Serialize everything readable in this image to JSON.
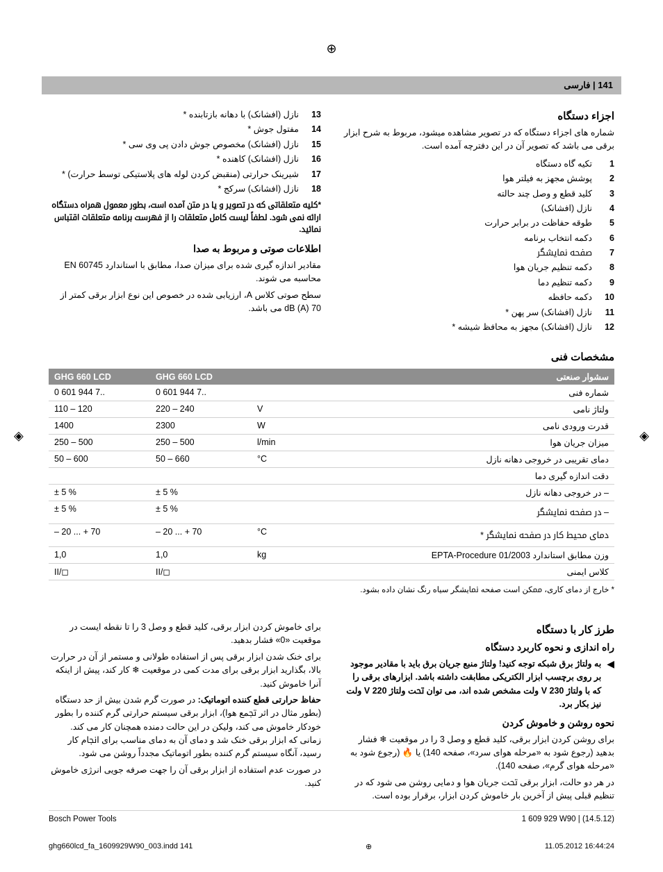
{
  "header": {
    "page_label": "141 | ﻓﺎرﺳﯽ"
  },
  "sections": {
    "parts_title": "اﺟﺰاء دﺳﺘﮕﺎه",
    "parts_intro": "ﺷﻤﺎره ﻫﺎی اﺟﺰاء دﺳﺘﮕﺎه ﮐﻪ در ﺗﺼﻮﯾﺮ ﻣﺸﺎﻫﺪه ﻣﯿﺸﻮد، ﻣﺮﺑﻮط ﺑﻪ ﺷﺮح اﺑﺰار ﺑﺮﻗﯽ ﻣﯽ ﺑﺎﺷﺪ ﮐﻪ ﺗﺼﻮﯾﺮ آن در اﯾﻦ دﻓﺘﺮﭼﻪ آﻣﺪه اﺳﺖ.",
    "parts_right": [
      {
        "n": "1",
        "t": "ﺗﮑﯿﻪ ﮔﺎه دﺳﺘﮕﺎه"
      },
      {
        "n": "2",
        "t": "ﭘﻮﺷﺶ ﻣﺠﻬﺰ ﺑﻪ ﻓﯿﻠﺘﺮ ﻫﻮا"
      },
      {
        "n": "3",
        "t": "ﮐﻠﯿﺪ ﻗﻄﻊ و وﺻﻞ ﭼﻨﺪ ﺣﺎﻟﺘﻪ"
      },
      {
        "n": "4",
        "t": "ﻧﺎزل (اﻓﺸﺎﻧﮏ)"
      },
      {
        "n": "5",
        "t": "ﻃﻮﻗﻪ ﺣﻔﺎﻇﺖ در ﺑﺮاﺑﺮ ﺣﺮارت"
      },
      {
        "n": "6",
        "t": "دﮐﻤﻪ اﻧﺘﺨﺎب ﺑﺮﻧﺎﻣﻪ"
      },
      {
        "n": "7",
        "t": "ﺻﻔﺤﻪ ﳕﺎﯾﺸﮕﺮ"
      },
      {
        "n": "8",
        "t": "دﮐﻤﻪ ﺗﻨﻈﯿﻢ ﺟﺮﯾﺎن ﻫﻮا"
      },
      {
        "n": "9",
        "t": "دﮐﻤﻪ ﺗﻨﻈﯿﻢ دﻣﺎ"
      },
      {
        "n": "10",
        "t": "دﮐﻤﻪ ﺣﺎﻓﻈﻪ"
      },
      {
        "n": "11",
        "t": "ﻧﺎزل (اﻓﺸﺎﻧﮏ) ﺳﺮ ﭘﻬﻦ *"
      },
      {
        "n": "12",
        "t": "ﻧﺎزل (اﻓﺸﺎﻧﮏ) ﻣﺠﻬﺰ ﺑﻪ ﻣﺤﺎﻓﻆ ﺷﯿﺸﻪ *"
      }
    ],
    "parts_left": [
      {
        "n": "13",
        "t": "ﻧﺎزل (اﻓﺸﺎﻧﮏ) ﺑﺎ دﻫﺎﻧﻪ ﺑﺎزﺗﺎﺑﻨﺪه *"
      },
      {
        "n": "14",
        "t": "ﻣﻔﺘﻮل ﺟﻮش *"
      },
      {
        "n": "15",
        "t": "ﻧﺎزل (اﻓﺸﺎﻧﮏ) ﻣﺨﺼﻮص ﺟﻮش دادن ﭘﯽ وی ﺳﯽ *"
      },
      {
        "n": "16",
        "t": "ﻧﺎزل (اﻓﺸﺎﻧﮏ) ﮐﺎﻫﻨﺪه *"
      },
      {
        "n": "17",
        "t": "ﺷﯿﺮﯾﻨﮏ ﺣﺮارﺗﯽ (ﻣﻨﻘﺒﺾ ﮐﺮدن ﻟﻮﻟﻪ ﻫﺎی ﭘﻼﺳﺘﯿﮑﯽ ﺗﻮﺳﻂ ﺣﺮارت) *"
      },
      {
        "n": "18",
        "t": "ﻧﺎزل (اﻓﺸﺎﻧﮏ) ﺳﺮﮐﺞ *"
      }
    ],
    "parts_note": "*ﮐﻠﯿﻪ ﻣﺘﻌﻠﻘﺎﺗﯽ ﮐﻪ در ﺗﺼﻮﯾﺮ و ﯾﺎ در ﻣﱳ آﻣﺪه اﺳﺖ، ﺑﻄﻮر ﻣﻌﻤﻮل ﻫﻤﺮاه دﺳﺘﮕﺎه اراﺋﻪ ﳕﯽ ﺷﻮد. ﻟﻄﻔﺎً ﻟﯿﺴﺖ ﮐﺎﻣﻞ ﻣﺘﻌﻠﻘﺎت را از ﻓﻬﺮﺳﺖ ﺑﺮﻧﺎﻣﻪ ﻣﺘﻌﻠﻘﺎت اﻗﺘﺒﺎس ﳕﺎﺋﯿﺪ.",
    "noise_title": "اﻃﻼﻋﺎت ﺻﻮﺗﯽ و ﻣﺮﺑﻮط ﺑﻪ ﺻﺪا",
    "noise_p1": "ﻣﻘﺎدﯾﺮ اﻧﺪازه ﮔﯿﺮی ﺷﺪه ﺑﺮای ﻣﯿﺰان ﺻﺪا، ﻣﻄﺎﺑﻖ ﺑﺎ اﺳﺘﺎﻧﺪارد EN 60745 ﻣﺤﺎﺳﺒﻪ ﻣﯽ ﺷﻮﻧﺪ.",
    "noise_p2": "ﺳﻄﺢ ﺻﻮﺗﯽ ﮐﻼس A، ارزﯾﺎﺑﯽ ﺷﺪه در ﺧﺼﻮص اﯾﻦ ﻧﻮع اﺑﺰار ﺑﺮﻗﯽ ﮐﻤﺘﺮ از 70 dB (A) ﻣﯽ ﺑﺎﺷﺪ.",
    "tech_title": "ﻣﺸﺨﺼﺎت ﻓﻨﯽ"
  },
  "spec_table": {
    "headers": {
      "label": "ﺳﺸﻮار ﺻﻨﻌﺘﯽ",
      "unit": "",
      "c1": "GHG 660 LCD",
      "c2": "GHG 660 LCD"
    },
    "rows": [
      {
        "label": "ﺷﻤﺎره ﻓﻨﯽ",
        "unit": "",
        "c1": "0 601 944 7..",
        "c2": "0 601 944 7.."
      },
      {
        "label": "وﻟﺘﺎژ ﻧﺎﻣﯽ",
        "unit": "V",
        "c1": "220 – 240",
        "c2": "110 – 120"
      },
      {
        "label": "ﻗﺪرت ورودی ﻧﺎﻣﯽ",
        "unit": "W",
        "c1": "2300",
        "c2": "1400"
      },
      {
        "label": "ﻣﯿﺰان ﺟﺮﯾﺎن ﻫﻮا",
        "unit": "l/min",
        "c1": "250 – 500",
        "c2": "250 – 500"
      },
      {
        "label": "دﻣﺎی ﺗﻘﺮﯾﺒﯽ در ﺧﺮوﺟﯽ دﻫﺎﻧﻪ ﻧﺎزل",
        "unit": "°C",
        "c1": "50 – 660",
        "c2": "50 – 600"
      },
      {
        "label": "دﻗﺖ اﻧﺪازه ﮔﯿﺮی دﻣﺎ",
        "unit": "",
        "c1": "",
        "c2": ""
      },
      {
        "label": "– در ﺧﺮوﺟﯽ دﻫﺎﻧﻪ ﻧﺎزل",
        "unit": "",
        "c1": "± 5 %",
        "c2": "± 5 %"
      },
      {
        "label": "– در ﺻﻔﺤﻪ ﳕﺎﯾﺸﮕﺮ",
        "unit": "",
        "c1": "± 5 %",
        "c2": "± 5 %"
      },
      {
        "label": "دﻣﺎی ﻣﺤﯿﻂ ﮐﺎر در ﺻﻔﺤﻪ ﳕﺎﯾﺸﮕﺮ *",
        "unit": "°C",
        "c1": "– 20 ... + 70",
        "c2": "– 20 ... + 70"
      },
      {
        "label": "وزن ﻣﻄﺎﺑﻖ اﺳﺘﺎﻧﺪارد EPTA-Procedure 01/2003",
        "unit": "kg",
        "c1": "1,0",
        "c2": "1,0"
      },
      {
        "label": "ﮐﻼس اﯾﻤﻨﯽ",
        "unit": "",
        "c1": "II/◻",
        "c2": "II/◻"
      }
    ],
    "footnote": "* ﺧﺎرج از دﻣﺎی ﮐﺎری، ﳑﮑﻦ اﺳﺖ ﺻﻔﺤﻪ ﳕﺎﯾﺸﮕﺮ ﺳﯿﺎه رﻧﮓ ﻧﺸﺎن داده ﺑﺸﻮد."
  },
  "usage": {
    "title": "ﻃﺮز ﮐﺎر ﺑﺎ دﺳﺘﮕﺎه",
    "start_title": "راه اﻧﺪازی و ﻧﺤﻮه ﮐﺎرﺑﺮد دﺳﺘﮕﺎه",
    "warn": "ﺑﻪ وﻟﺘﺎژ ﺑﺮق ﺷﺒﮑﻪ ﺗﻮﺟﻪ ﮐﻨﯿﺪ! وﻟﺘﺎژ ﻣﻨﺒﻊ ﺟﺮﯾﺎن ﺑﺮق ﺑﺎﯾﺪ ﺑﺎ ﻣﻘﺎدﯾﺮ ﻣﻮﺟﻮد ﺑﺮ روی ﺑﺮﭼﺴﺐ اﺑﺰار اﻟﮑﺘﺮﯾﮑﯽ ﻣﻄﺎﺑﻘﺖ داﺷﺘﻪ ﺑﺎﺷﺪ. اﺑﺰارﻫﺎی ﺑﺮﻗﯽ را ﮐﻪ ﺑﺎ وﻟﺘﺎژ 230 V وﻟﺖ ﻣﺸﺨﺺ ﺷﺪه اﻧﺪ، ﻣﯽ ﺗﻮان ﲢﺖ وﻟﺘﺎژ 220 V وﻟﺖ ﻧﯿﺰ ﺑﮑﺎر ﺑﺮد.",
    "onoff_title": "ﻧﺤﻮه روﺷﻦ و ﺧﺎﻣﻮش ﮐﺮدن",
    "onoff_p1": "ﺑﺮای روﺷﻦ ﮐﺮدن اﺑﺰار ﺑﺮﻗﯽ، ﮐﻠﯿﺪ ﻗﻄﻊ و وﺻﻞ 3 را در ﻣﻮﻗﻌﯿﺖ ❄ ﻓﺸﺎر ﺑﺪﻫﯿﺪ (رﺟﻮع ﺷﻮد ﺑﻪ «ﻣﺮﺣﻠﻪ ﻫﻮای ﺳﺮد»، ﺻﻔﺤﻪ 140) ﯾﺎ 🔥 (رﺟﻮع ﺷﻮد ﺑﻪ «ﻣﺮﺣﻠﻪ ﻫﻮای ﮔﺮم»، ﺻﻔﺤﻪ 140).",
    "onoff_p2": "در ﻫﺮ دو ﺣﺎﻟﺖ، اﺑﺰار ﺑﺮﻗﯽ ﲢﺖ ﺟﺮﯾﺎن ﻫﻮا و دﻣﺎﯾﯽ روﺷﻦ ﻣﯽ ﺷﻮد ﮐﻪ در ﺗﻨﻈﯿﻢ ﻗﺒﻠﯽ ﭘﯿﺶ از آﺧﺮﯾﻦ ﺑﺎر ﺧﺎﻣﻮش ﮐﺮدن اﺑﺰار، ﺑﺮﻗﺮار ﺑﻮده اﺳﺖ.",
    "off_p1": "ﺑﺮای ﺧﺎﻣﻮش ﮐﺮدن اﺑﺰار ﺑﺮﻗﯽ، ﮐﻠﯿﺪ ﻗﻄﻊ و وﺻﻞ 3 را ﺗﺎ ﻧﻘﻄﻪ اﯾﺴﺖ در ﻣﻮﻗﻌﯿﺖ «0» ﻓﺸﺎر ﺑﺪﻫﯿﺪ.",
    "off_p2": "ﺑﺮای ﺧﻨﮏ ﺷﺪن اﺑﺰار ﺑﺮﻗﯽ ﭘﺲ از اﺳﺘﻔﺎده ﻃﻮﻻﻧﯽ و ﻣﺴﺘﻤﺮ از آن در ﺣﺮارت ﺑﺎﻻ، ﺑﮕﺬارﯾﺪ اﺑﺰار ﺑﺮﻗﯽ ﺑﺮای ﻣﺪت ﮐﻤﯽ در ﻣﻮﻗﻌﯿﺖ ❄ ﮐﺎر ﮐﻨﺪ، ﭘﯿﺶ از اﯾﻨﮑﻪ آﻧﺮا ﺧﺎﻣﻮش ﮐﻨﯿﺪ.",
    "thermal_title": "ﺣﻔﺎظ ﺣﺮارﺗﯽ ﻗﻄﻊ ﮐﻨﻨﺪه اﺗﻮﻣﺎﺗﯿﮏ:",
    "thermal_p": " در ﺻﻮرت ﮔﺮم ﺷﺪن ﺑﯿﺶ از ﺣﺪ دﺳﺘﮕﺎه (ﺑﻄﻮر ﻣﺜﺎل در اﺛﺮ ﲡﻤﻊ ﻫﻮا)، اﺑﺰار ﺑﺮﻗﯽ ﺳﯿﺴﺘﻢ ﺣﺮارﺗﯽ ﮔﺮم ﮐﻨﻨﺪه را ﺑﻄﻮر ﺧﻮدﮐﺎر ﺧﺎﻣﻮش ﻣﯽ ﮐﻨﺪ، وﻟﯿﮑﻦ در اﯾﻦ ﺣﺎﻟﺖ دﻣﻨﺪه ﻫﻤﭽﻨﺎن ﮐﺎر ﻣﯽ ﮐﻨﺪ. زﻣﺎﻧﯽ ﮐﻪ اﺑﺰار ﺑﺮﻗﯽ ﺧﻨﮏ ﺷﺪ و دﻣﺎی آن ﺑﻪ دﻣﺎی ﻣﻨﺎﺳﺐ ﺑﺮای اﳒﺎم ﮐﺎر رﺳﯿﺪ، آﻧﮕﺎه ﺳﯿﺴﺘﻢ ﮔﺮم ﮐﻨﻨﺪه ﺑﻄﻮر اﺗﻮﻣﺎﺗﯿﮏ ﻣﺠﺪداً روﺷﻦ ﻣﯽ ﺷﻮد.",
    "energy_p": "در ﺻﻮرت ﻋﺪم اﺳﺘﻔﺎده از اﺑﺰار ﺑﺮﻗﯽ آن را ﺟﻬﺖ ﺻﺮﻓﻪ ﺟﻮﯾﯽ اﻧﺮژی ﺧﺎﻣﻮش ﮐﻨﯿﺪ."
  },
  "footer": {
    "left": "Bosch Power Tools",
    "right": "1 609 929 W90 | (14.5.12)",
    "print_left": "ghg660lcd_fa_1609929W90_003.indd   141",
    "print_right": "11.05.2012   16:44:24"
  }
}
